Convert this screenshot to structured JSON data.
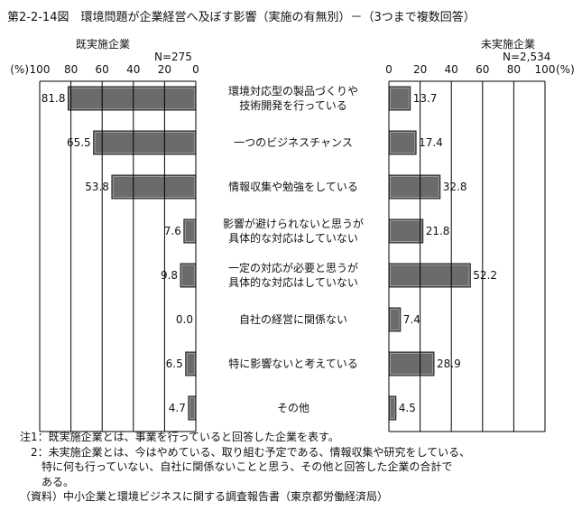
{
  "title": "第2-2-14図　環境問題が企業経営へ及ぼす影響（実施の有無別）－（3つまで複数回答）",
  "chart_data": [
    {
      "type": "bar",
      "orientation": "horizontal",
      "direction": "right-to-left",
      "title": "既実施企業",
      "n_label": "N=275",
      "unit_label": "(%)",
      "xlim": [
        0,
        100
      ],
      "ticks": [
        0,
        20,
        40,
        60,
        80,
        100
      ],
      "grid": true,
      "values": [
        81.8,
        65.5,
        53.8,
        7.6,
        9.8,
        0.0,
        6.5,
        4.7
      ],
      "value_labels": [
        "81.8",
        "65.5",
        "53.8",
        "7.6",
        "9.8",
        "0.0",
        "6.5",
        "4.7"
      ]
    },
    {
      "type": "bar",
      "orientation": "horizontal",
      "direction": "left-to-right",
      "title": "未実施企業",
      "n_label": "N=2,534",
      "unit_label": "(%)",
      "xlim": [
        0,
        100
      ],
      "ticks": [
        0,
        20,
        40,
        60,
        80,
        100
      ],
      "grid": true,
      "values": [
        13.7,
        17.4,
        32.8,
        21.8,
        52.2,
        7.4,
        28.9,
        4.5
      ],
      "value_labels": [
        "13.7",
        "17.4",
        "32.8",
        "21.8",
        "52.2",
        "7.4",
        "28.9",
        "4.5"
      ]
    }
  ],
  "categories": [
    [
      "環境対応型の製品づくりや",
      "技術開発を行っている"
    ],
    [
      "一つのビジネスチャンス"
    ],
    [
      "情報収集や勉強をしている"
    ],
    [
      "影響が避けられないと思うが",
      "具体的な対応はしていない"
    ],
    [
      "一定の対応が必要と思うが",
      "具体的な対応はしていない"
    ],
    [
      "自社の経営に関係ない"
    ],
    [
      "特に影響ないと考えている"
    ],
    [
      "その他"
    ]
  ],
  "colors": {
    "bar": "#6b6b6b",
    "bar_edge": "#9a9a9a",
    "grid": "#000000"
  },
  "notes": [
    "注1：既実施企業とは、事業を行っていると回答した企業を表す。",
    "　2：未実施企業とは、今はやめている、取り組む予定である、情報収集や研究をしている、",
    "　　特に何も行っていない、自社に関係ないことと思う、その他と回答した企業の合計で",
    "　　ある。",
    "（資料）中小企業と環境ビジネスに関する調査報告書（東京都労働経済局）"
  ]
}
